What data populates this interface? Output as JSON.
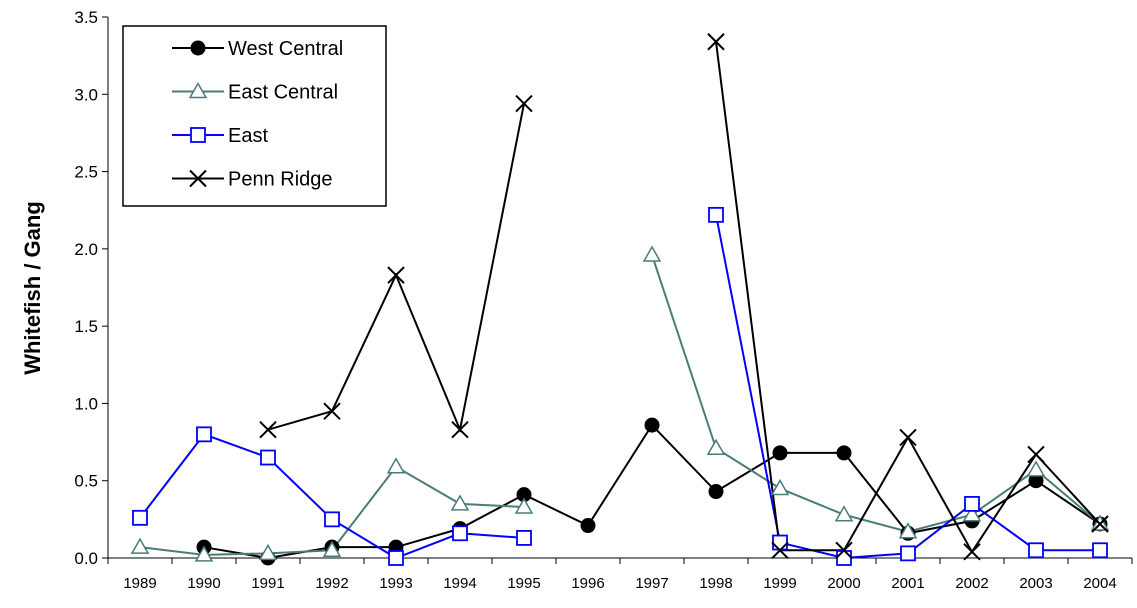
{
  "chart_data": {
    "type": "line",
    "y_label": "Whitefish / Gang",
    "categories": [
      "1989",
      "1990",
      "1991",
      "1992",
      "1993",
      "1994",
      "1995",
      "1996",
      "1997",
      "1998",
      "1999",
      "2000",
      "2001",
      "2002",
      "2003",
      "2004"
    ],
    "series": [
      {
        "name": "West Central",
        "color": "#000000",
        "marker": "circle",
        "values": [
          null,
          0.07,
          0.0,
          0.07,
          0.07,
          0.19,
          0.41,
          0.21,
          0.86,
          0.43,
          0.68,
          0.68,
          0.16,
          0.24,
          0.5,
          0.22
        ]
      },
      {
        "name": "East Central",
        "color": "#4a7c7a",
        "marker": "triangle",
        "values": [
          0.07,
          0.02,
          0.03,
          0.05,
          0.59,
          0.35,
          0.33,
          null,
          1.96,
          0.71,
          0.45,
          0.28,
          0.17,
          0.28,
          0.57,
          0.22
        ]
      },
      {
        "name": "East",
        "color": "#0000ff",
        "marker": "square",
        "values": [
          0.26,
          0.8,
          0.65,
          0.25,
          0.0,
          0.16,
          0.13,
          null,
          null,
          2.22,
          0.1,
          0.0,
          0.03,
          0.35,
          0.05,
          0.05
        ]
      },
      {
        "name": "Penn Ridge",
        "color": "#000000",
        "marker": "x",
        "values": [
          null,
          null,
          0.83,
          0.95,
          1.83,
          0.83,
          2.94,
          null,
          null,
          3.34,
          0.05,
          0.05,
          0.78,
          0.04,
          0.67,
          0.22
        ]
      }
    ],
    "ylim": [
      0,
      3.5
    ],
    "yticks": [
      {
        "value": 0,
        "label": "0.0"
      },
      0.5,
      {
        "value": 1,
        "label": "1.0"
      },
      1.5,
      {
        "value": 2,
        "label": "2.0"
      },
      2.5,
      {
        "value": 3,
        "label": "3.0"
      },
      3.5
    ],
    "legend": "upper left"
  }
}
